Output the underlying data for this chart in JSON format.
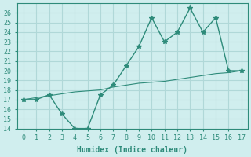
{
  "xlabel": "Humidex (Indice chaleur)",
  "x": [
    0,
    1,
    2,
    3,
    4,
    5,
    6,
    7,
    8,
    9,
    10,
    11,
    12,
    13,
    14,
    15,
    16,
    17
  ],
  "y_curve": [
    17,
    17,
    17.5,
    15.5,
    14,
    14,
    17.5,
    18.5,
    20.5,
    22.5,
    25.5,
    23,
    24,
    26.5,
    24,
    25.5,
    20,
    20
  ],
  "y_line": [
    17,
    17.2,
    17.4,
    17.6,
    17.8,
    17.9,
    18.0,
    18.3,
    18.5,
    18.7,
    18.8,
    18.9,
    19.1,
    19.3,
    19.5,
    19.7,
    19.8,
    20
  ],
  "line_color": "#2e8b7a",
  "bg_color": "#d0eeee",
  "grid_color": "#b0d8d8",
  "ylim": [
    14,
    27
  ],
  "xlim": [
    -0.5,
    17.5
  ],
  "yticks": [
    14,
    15,
    16,
    17,
    18,
    19,
    20,
    21,
    22,
    23,
    24,
    25,
    26
  ],
  "xticks": [
    0,
    1,
    2,
    3,
    4,
    5,
    6,
    7,
    8,
    9,
    10,
    11,
    12,
    13,
    14,
    15,
    16,
    17
  ]
}
